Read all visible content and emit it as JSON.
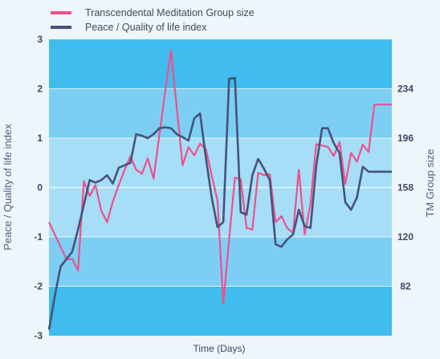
{
  "colors": {
    "background": "#eef6fc",
    "band_dark": "#40bcee",
    "band_mid": "#7ccff3",
    "band_light": "#a5def6",
    "gridline": "#ffffff",
    "tm_series": "#f0508c",
    "peace_series": "#48527c"
  },
  "chart_data": {
    "type": "line",
    "xlabel": "Time (Days)",
    "ylabel_left": "Peace / Quality of life index",
    "ylabel_right": "TM Group size",
    "ylim_left": [
      -3,
      3
    ],
    "yticks_left": [
      "3",
      "2",
      "1",
      "0",
      "-1",
      "-2",
      "-3"
    ],
    "yticks_right": [
      "234",
      "196",
      "158",
      "120",
      "82"
    ],
    "grid": true,
    "legend_position": "top-left",
    "x": [
      0,
      1,
      2,
      3,
      4,
      5,
      6,
      7,
      8,
      9,
      10,
      11,
      12,
      13,
      14,
      15,
      16,
      17,
      18,
      19,
      20,
      21,
      22,
      23,
      24,
      25,
      26,
      27,
      28,
      29,
      30,
      31,
      32,
      33,
      34,
      35,
      36,
      37,
      38,
      39,
      40,
      41,
      42,
      43,
      44,
      45,
      46,
      47,
      48,
      49,
      50,
      51,
      52,
      53,
      54,
      55,
      56,
      57,
      58,
      59
    ],
    "series": [
      {
        "name": "Transcendental Meditation Group size",
        "axis": "left",
        "values": [
          -0.7,
          -0.95,
          -1.2,
          -1.45,
          -1.45,
          -1.68,
          0.13,
          -0.17,
          0.05,
          -0.47,
          -0.7,
          -0.28,
          0.05,
          0.35,
          0.63,
          0.36,
          0.28,
          0.59,
          0.18,
          1.06,
          1.95,
          2.78,
          1.6,
          0.45,
          0.82,
          0.65,
          0.89,
          0.78,
          0.25,
          -0.27,
          -2.35,
          -1.05,
          0.2,
          0.17,
          -0.82,
          -0.85,
          0.3,
          0.25,
          0.27,
          -0.7,
          -0.58,
          -0.82,
          -0.92,
          0.36,
          -0.95,
          -0.33,
          0.88,
          0.85,
          0.82,
          0.64,
          0.92,
          0.07,
          0.7,
          0.52,
          0.87,
          0.72,
          1.68,
          1.68,
          1.68,
          1.68
        ]
      },
      {
        "name": "Peace / Quality of life index",
        "axis": "left",
        "values": [
          -2.88,
          -2.2,
          -1.6,
          -1.45,
          -1.3,
          -0.85,
          -0.35,
          0.15,
          0.1,
          0.15,
          0.25,
          0.08,
          0.4,
          0.45,
          0.5,
          1.08,
          1.05,
          1.0,
          1.08,
          1.2,
          1.22,
          1.2,
          1.08,
          1.02,
          0.95,
          1.4,
          1.5,
          0.6,
          -0.2,
          -0.8,
          -0.7,
          2.2,
          2.22,
          -0.5,
          -0.55,
          0.25,
          0.58,
          0.38,
          0.15,
          -1.15,
          -1.2,
          -1.05,
          -0.95,
          -0.45,
          -0.78,
          -0.82,
          0.45,
          1.2,
          1.2,
          0.9,
          0.7,
          -0.3,
          -0.45,
          -0.2,
          0.42,
          0.32,
          0.32,
          0.32,
          0.32,
          0.32
        ]
      }
    ]
  }
}
